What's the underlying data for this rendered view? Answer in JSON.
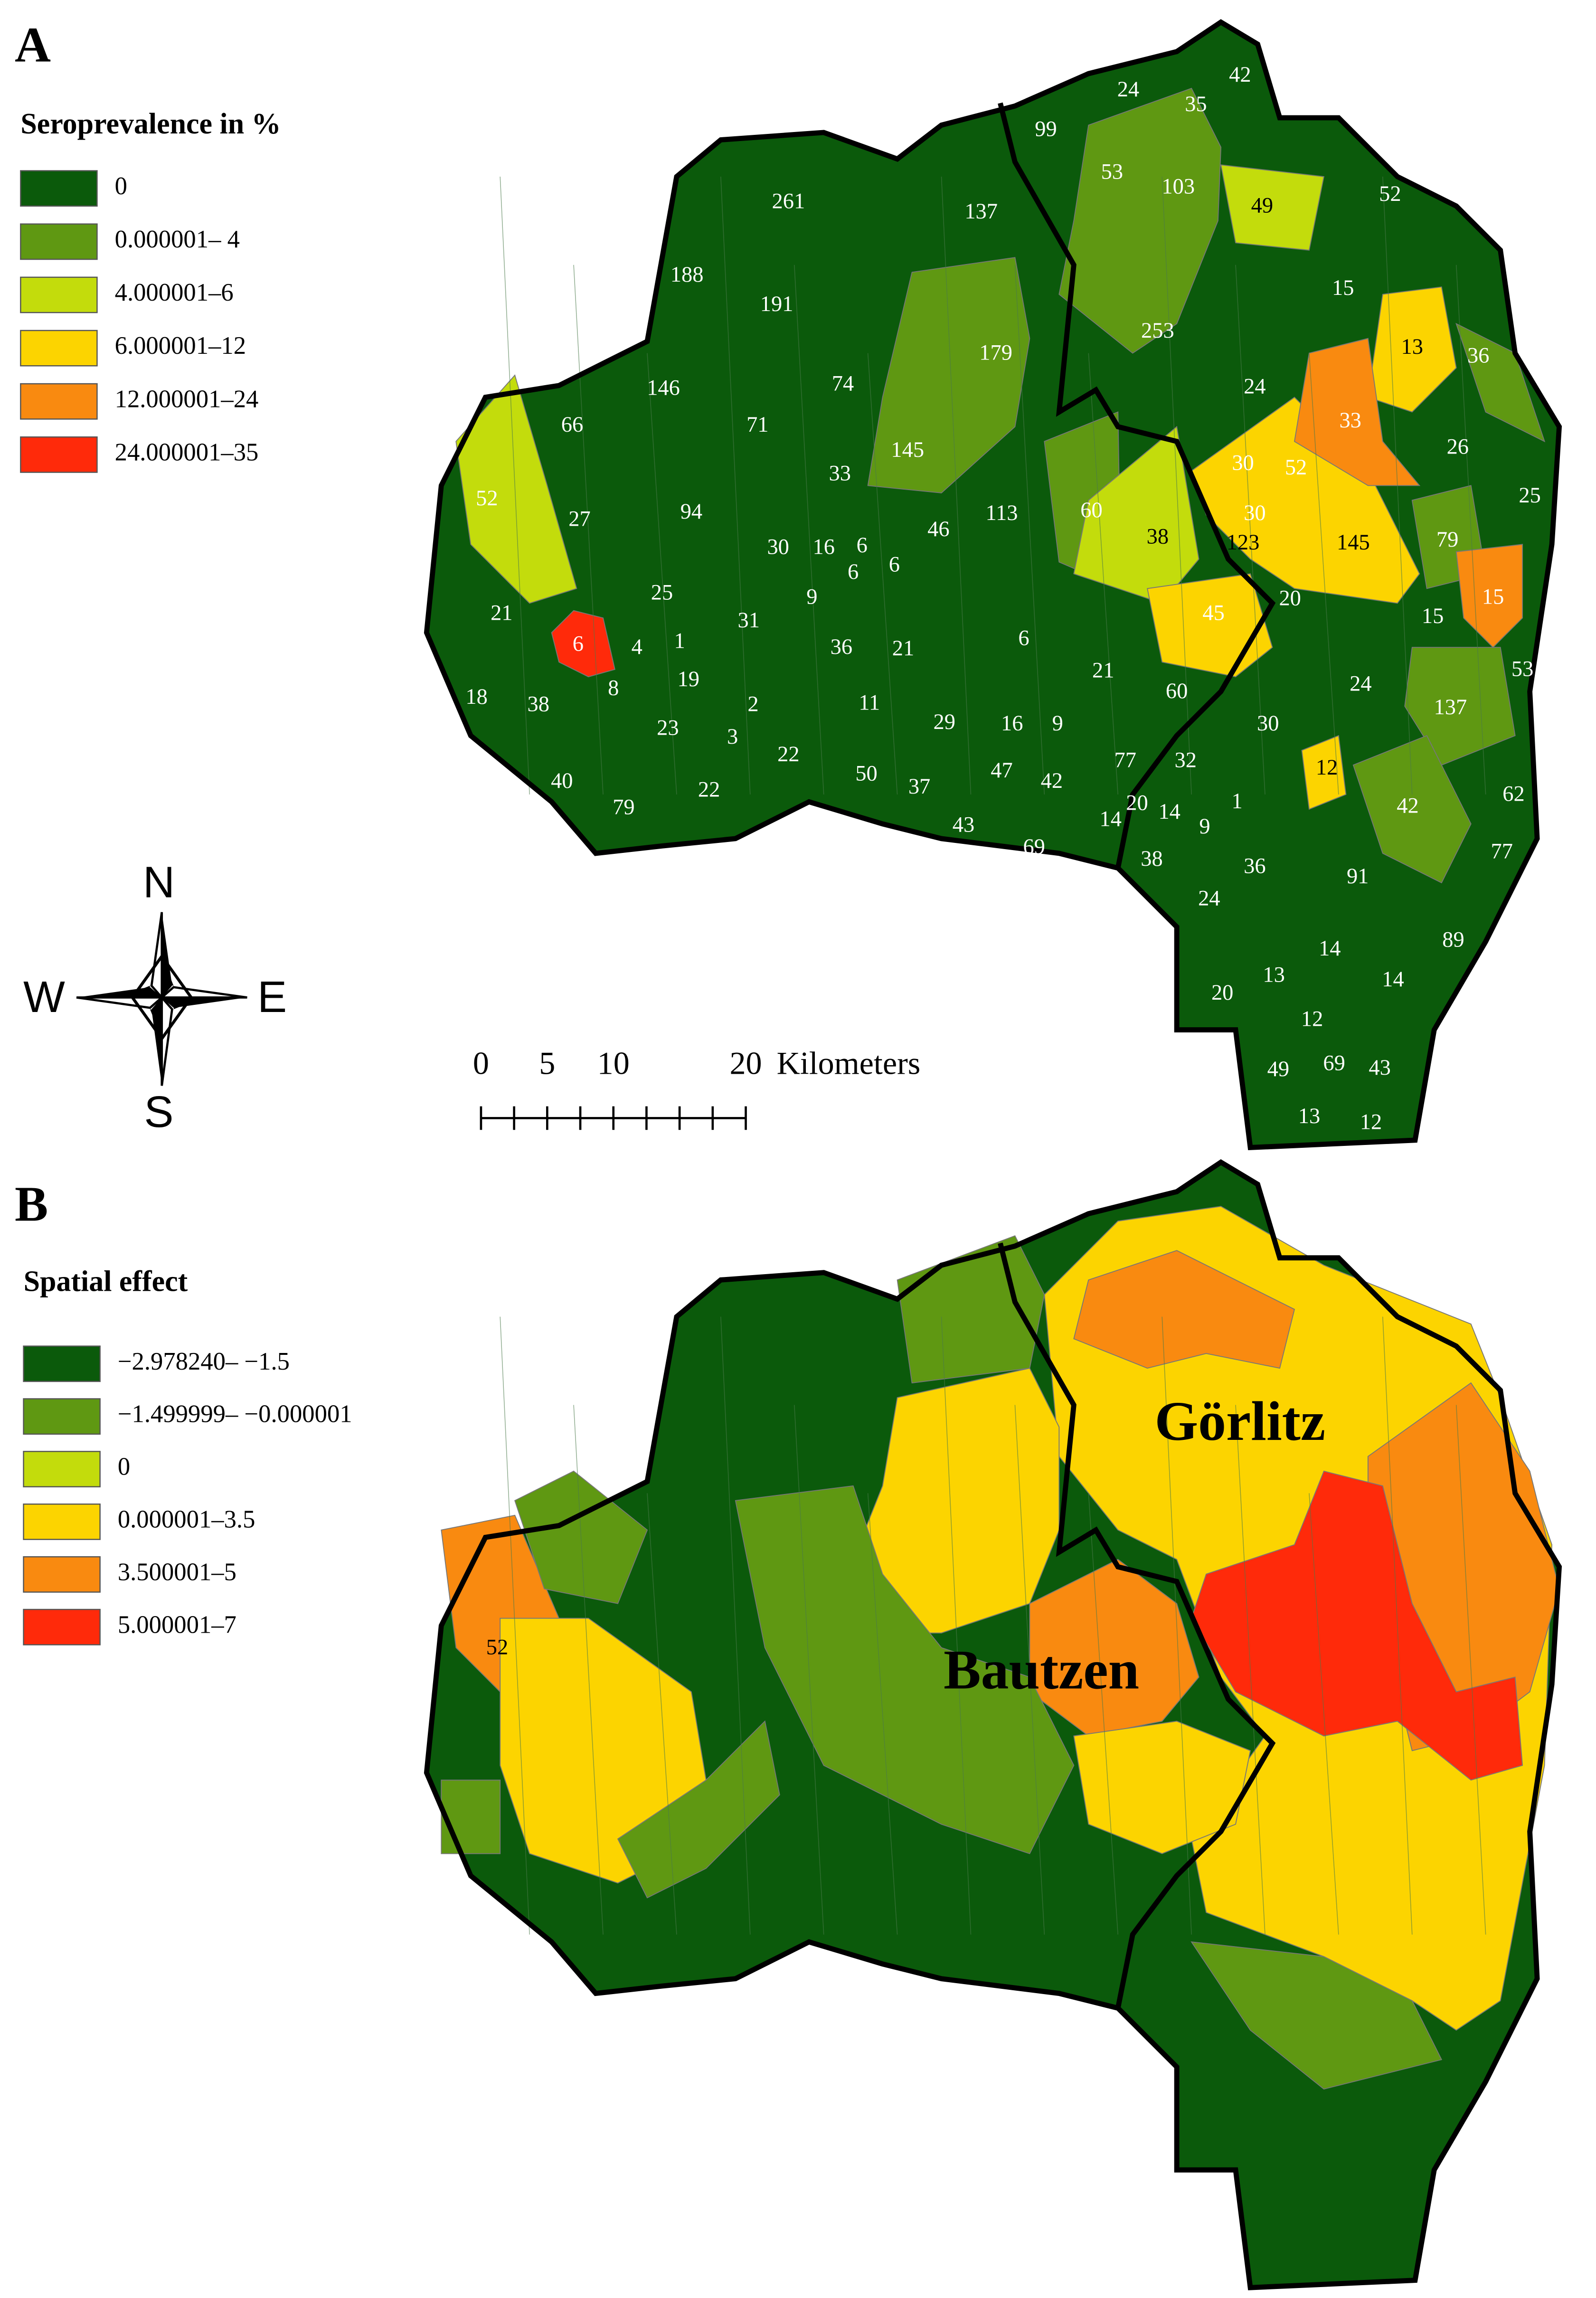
{
  "panel_a": {
    "label": "A",
    "legend": {
      "title": "Seroprevalence in %",
      "items": [
        {
          "label": "0",
          "color": "#0b5a0b"
        },
        {
          "label": "0.000001– 4",
          "color": "#5f9812"
        },
        {
          "label": "4.000001–6",
          "color": "#c3dc0c"
        },
        {
          "label": "6.000001–12",
          "color": "#fcd400"
        },
        {
          "label": "12.000001–24",
          "color": "#f98a10"
        },
        {
          "label": "24.000001–35",
          "color": "#ff2a0a"
        }
      ]
    },
    "district_labels": [
      42,
      24,
      35,
      99,
      53,
      103,
      49,
      52,
      261,
      137,
      188,
      15,
      191,
      253,
      179,
      13,
      36,
      146,
      74,
      24,
      66,
      71,
      33,
      26,
      145,
      52,
      33,
      30,
      52,
      25,
      94,
      27,
      113,
      60,
      38,
      30,
      46,
      30,
      16,
      6,
      123,
      145,
      79,
      6,
      6,
      9,
      25,
      31,
      20,
      45,
      15,
      15,
      21,
      6,
      4,
      1,
      36,
      21,
      6,
      21,
      53,
      19,
      8,
      24,
      60,
      18,
      38,
      2,
      11,
      29,
      16,
      9,
      137,
      30,
      23,
      3,
      22,
      77,
      32,
      12,
      40,
      50,
      37,
      47,
      42,
      62,
      79,
      22,
      20,
      14,
      1,
      42,
      14,
      43,
      9,
      69,
      77,
      38,
      36,
      91,
      24,
      89,
      14,
      13,
      14,
      20,
      12,
      49,
      69,
      43,
      13,
      12
    ]
  },
  "panel_b": {
    "label": "B",
    "legend": {
      "title": "Spatial effect",
      "items": [
        {
          "label": "−2.978240– −1.5",
          "color": "#0b5a0b"
        },
        {
          "label": "−1.499999– −0.000001",
          "color": "#5f9812"
        },
        {
          "label": "0",
          "color": "#c3dc0c"
        },
        {
          "label": "0.000001–3.5",
          "color": "#fcd400"
        },
        {
          "label": "3.500001–5",
          "color": "#f98a10"
        },
        {
          "label": "5.000001–7",
          "color": "#ff2a0a"
        }
      ]
    },
    "district_labels": [
      52
    ],
    "region_labels": [
      "Görlitz",
      "Bautzen"
    ]
  },
  "compass": {
    "north": "N",
    "west": "W",
    "east": "E",
    "south": "S"
  },
  "scale_bar": {
    "ticks": [
      0,
      5,
      10,
      20
    ],
    "unit": "Kilometers"
  }
}
